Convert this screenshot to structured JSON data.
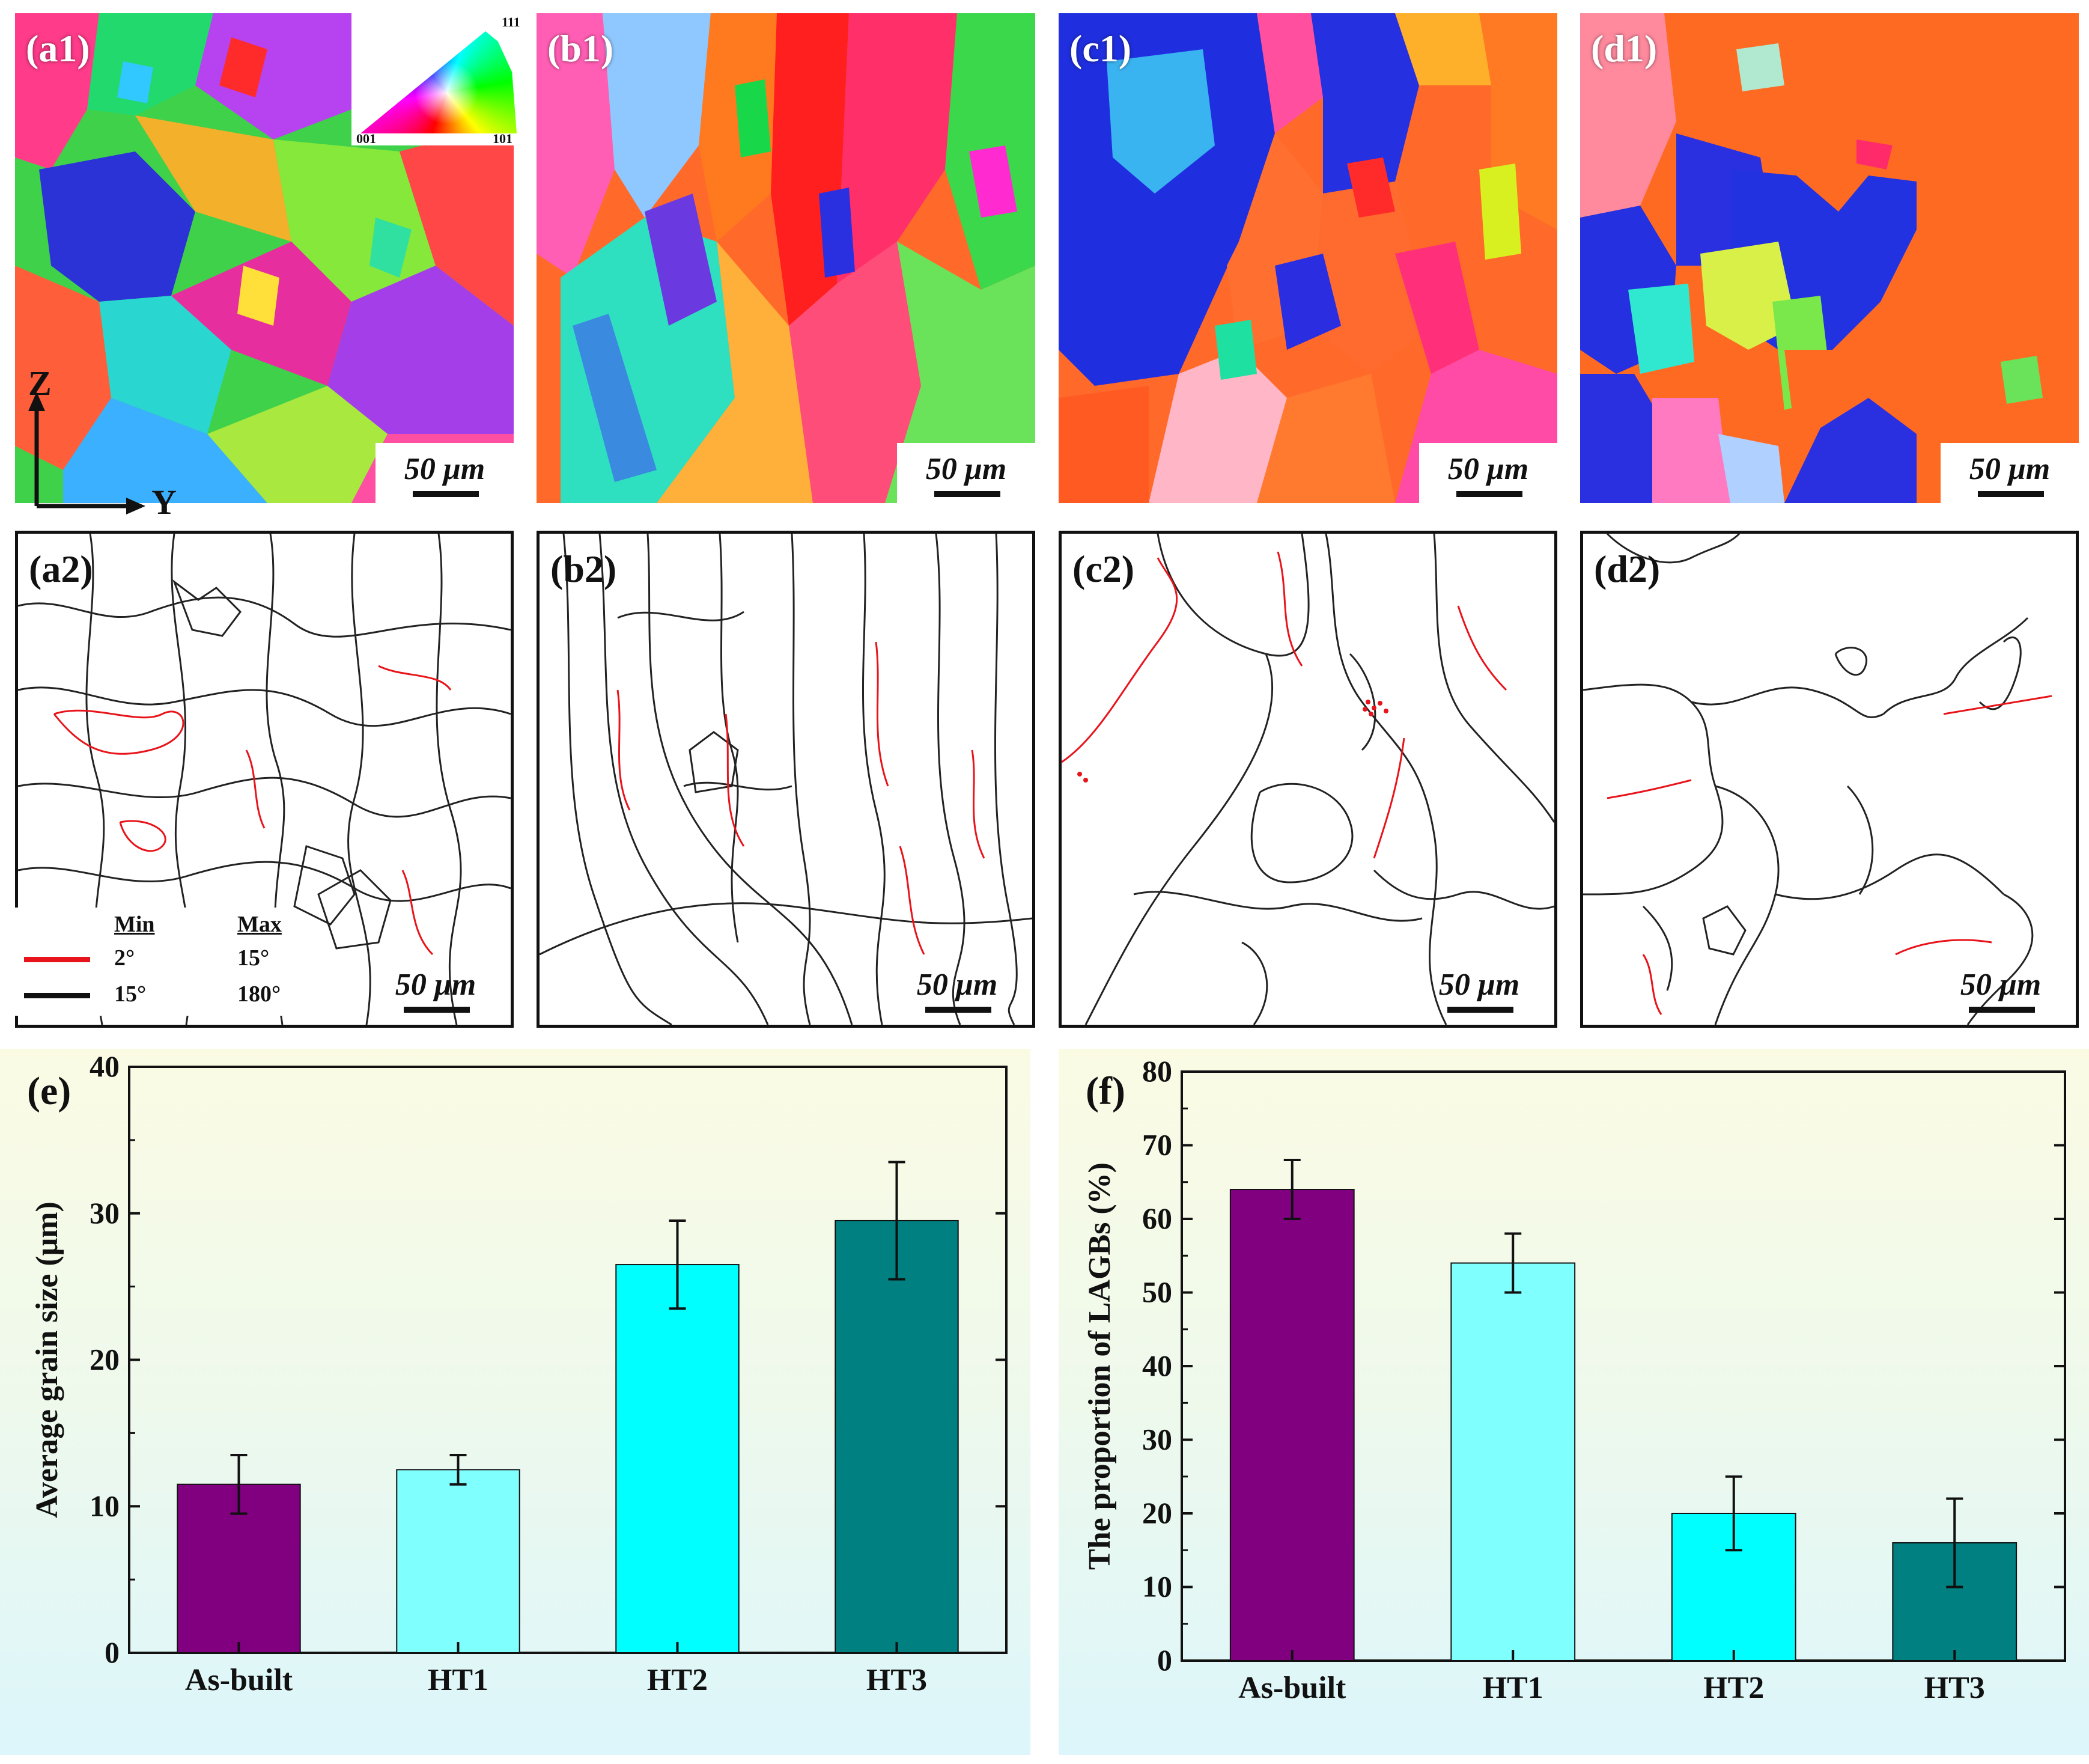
{
  "ebsd_maps": [
    {
      "label": "(a1)",
      "scale": "50 μm"
    },
    {
      "label": "(b1)",
      "scale": "50 μm"
    },
    {
      "label": "(c1)",
      "scale": "50 μm"
    },
    {
      "label": "(d1)",
      "scale": "50 μm"
    }
  ],
  "boundary_maps": [
    {
      "label": "(a2)",
      "scale": "50 μm"
    },
    {
      "label": "(b2)",
      "scale": "50 μm"
    },
    {
      "label": "(c2)",
      "scale": "50 μm"
    },
    {
      "label": "(d2)",
      "scale": "50 μm"
    }
  ],
  "ipf_legend": {
    "top": "111",
    "left": "001",
    "right": "101"
  },
  "axes_indicator": {
    "vertical": "Z",
    "horizontal": "Y"
  },
  "boundary_legend": {
    "min_header": "Min",
    "max_header": "Max",
    "rows": [
      {
        "min": "2°",
        "max": "15°",
        "color": "#e8141b"
      },
      {
        "min": "15°",
        "max": "180°",
        "color": "#111111"
      }
    ]
  },
  "chart_data": [
    {
      "type": "bar",
      "panel_label": "(e)",
      "categories": [
        "As-built",
        "HT1",
        "HT2",
        "HT3"
      ],
      "values": [
        11.5,
        12.5,
        26.5,
        29.5
      ],
      "errors": [
        2.0,
        1.0,
        3.0,
        4.0
      ],
      "colors": [
        "#800080",
        "#80ffff",
        "#00ffff",
        "#008080"
      ],
      "ylabel": "Average grain size (μm)",
      "ylim": [
        0,
        40
      ],
      "yticks": [
        0,
        10,
        20,
        30,
        40
      ]
    },
    {
      "type": "bar",
      "panel_label": "(f)",
      "categories": [
        "As-built",
        "HT1",
        "HT2",
        "HT3"
      ],
      "values": [
        64,
        54,
        20,
        16
      ],
      "errors": [
        4,
        4,
        5,
        6
      ],
      "colors": [
        "#800080",
        "#80ffff",
        "#00ffff",
        "#008080"
      ],
      "ylabel": "The proportion of LAGBs (%)",
      "ylim": [
        0,
        80
      ],
      "yticks": [
        0,
        10,
        20,
        30,
        40,
        50,
        60,
        70,
        80
      ]
    }
  ]
}
